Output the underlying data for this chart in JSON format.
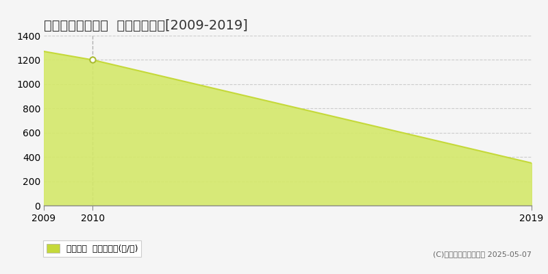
{
  "title": "栃木市大平町蔵井  農地価格推移[2009-2019]",
  "years": [
    2009,
    2010,
    2019
  ],
  "values": [
    1270,
    1200,
    350
  ],
  "xmin": 2009,
  "xmax": 2019,
  "ymin": 0,
  "ymax": 1400,
  "yticks": [
    0,
    200,
    400,
    600,
    800,
    1000,
    1200,
    1400
  ],
  "xticks": [
    2009,
    2010,
    2019
  ],
  "line_color": "#c5d93a",
  "fill_color": "#d4e86a",
  "fill_alpha": 0.9,
  "marker_color": "#ffffff",
  "marker_edge_color": "#aabb30",
  "marker_size": 6,
  "marker_linewidth": 1.5,
  "grid_color": "#cccccc",
  "grid_linestyle": "--",
  "background_color": "#f5f5f5",
  "plot_bg_color": "#f5f5f5",
  "title_fontsize": 14,
  "axis_fontsize": 10,
  "legend_label": "農地価格  平均坪単価(円/坪)",
  "legend_color": "#c5d93a",
  "copyright_text": "(C)土地価格ドットコム 2025-05-07",
  "vline_x": 2010,
  "vline_color": "#b0b0b0",
  "vline_linestyle": "--",
  "marker_only_at": [
    2010
  ]
}
